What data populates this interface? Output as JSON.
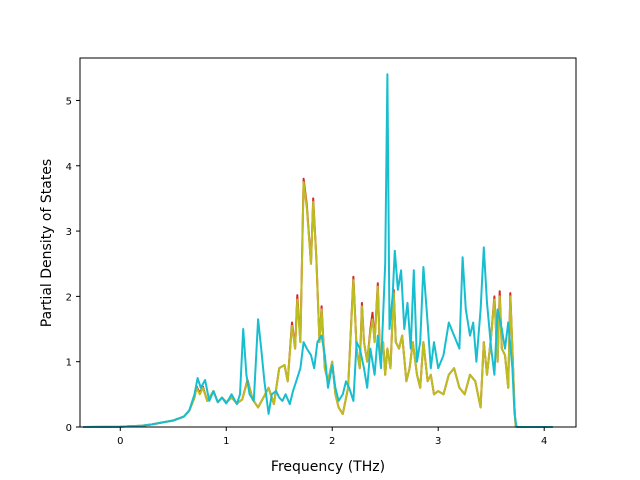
{
  "chart_data": {
    "type": "line",
    "title": "",
    "xlabel": "Frequency (THz)",
    "ylabel": "Partial Density of States",
    "xlim": [
      -0.38,
      4.3
    ],
    "ylim": [
      0,
      5.65
    ],
    "xticks": [
      0,
      1,
      2,
      3,
      4
    ],
    "yticks": [
      0,
      1,
      2,
      3,
      4,
      5
    ],
    "legend": "none",
    "grid": false,
    "series": [
      {
        "color": "#d62728",
        "points": [
          [
            -0.35,
            0
          ],
          [
            0.0,
            0.005
          ],
          [
            0.2,
            0.02
          ],
          [
            0.3,
            0.04
          ],
          [
            0.4,
            0.07
          ],
          [
            0.5,
            0.1
          ],
          [
            0.6,
            0.16
          ],
          [
            0.65,
            0.25
          ],
          [
            0.7,
            0.45
          ],
          [
            0.72,
            0.62
          ],
          [
            0.75,
            0.52
          ],
          [
            0.78,
            0.62
          ],
          [
            0.82,
            0.4
          ],
          [
            0.88,
            0.55
          ],
          [
            0.92,
            0.38
          ],
          [
            0.96,
            0.45
          ],
          [
            1.0,
            0.38
          ],
          [
            1.05,
            0.45
          ],
          [
            1.1,
            0.36
          ],
          [
            1.15,
            0.42
          ],
          [
            1.2,
            0.72
          ],
          [
            1.25,
            0.42
          ],
          [
            1.3,
            0.3
          ],
          [
            1.35,
            0.45
          ],
          [
            1.4,
            0.6
          ],
          [
            1.45,
            0.35
          ],
          [
            1.5,
            0.9
          ],
          [
            1.55,
            0.95
          ],
          [
            1.58,
            0.7
          ],
          [
            1.62,
            1.6
          ],
          [
            1.65,
            1.2
          ],
          [
            1.67,
            2.02
          ],
          [
            1.7,
            1.3
          ],
          [
            1.73,
            3.8
          ],
          [
            1.76,
            3.4
          ],
          [
            1.8,
            2.5
          ],
          [
            1.82,
            3.5
          ],
          [
            1.85,
            2.6
          ],
          [
            1.88,
            1.3
          ],
          [
            1.9,
            1.85
          ],
          [
            1.93,
            0.9
          ],
          [
            1.96,
            0.7
          ],
          [
            2.0,
            1.0
          ],
          [
            2.03,
            0.5
          ],
          [
            2.06,
            0.3
          ],
          [
            2.1,
            0.2
          ],
          [
            2.15,
            0.6
          ],
          [
            2.2,
            2.3
          ],
          [
            2.23,
            1.2
          ],
          [
            2.26,
            0.9
          ],
          [
            2.28,
            1.9
          ],
          [
            2.3,
            1.3
          ],
          [
            2.33,
            1.0
          ],
          [
            2.36,
            1.5
          ],
          [
            2.38,
            1.75
          ],
          [
            2.4,
            1.3
          ],
          [
            2.43,
            2.2
          ],
          [
            2.45,
            1.1
          ],
          [
            2.48,
            1.3
          ],
          [
            2.5,
            0.8
          ],
          [
            2.52,
            1.2
          ],
          [
            2.55,
            0.9
          ],
          [
            2.58,
            2.1
          ],
          [
            2.6,
            1.3
          ],
          [
            2.63,
            1.2
          ],
          [
            2.66,
            1.4
          ],
          [
            2.7,
            0.7
          ],
          [
            2.73,
            0.9
          ],
          [
            2.76,
            1.3
          ],
          [
            2.8,
            0.8
          ],
          [
            2.83,
            0.6
          ],
          [
            2.86,
            1.3
          ],
          [
            2.9,
            0.7
          ],
          [
            2.93,
            0.8
          ],
          [
            2.96,
            0.5
          ],
          [
            3.0,
            0.55
          ],
          [
            3.05,
            0.5
          ],
          [
            3.1,
            0.8
          ],
          [
            3.15,
            0.9
          ],
          [
            3.2,
            0.6
          ],
          [
            3.25,
            0.5
          ],
          [
            3.3,
            0.8
          ],
          [
            3.35,
            0.7
          ],
          [
            3.4,
            0.3
          ],
          [
            3.43,
            1.3
          ],
          [
            3.46,
            0.8
          ],
          [
            3.5,
            1.4
          ],
          [
            3.53,
            2.0
          ],
          [
            3.56,
            1.0
          ],
          [
            3.58,
            2.08
          ],
          [
            3.6,
            1.2
          ],
          [
            3.63,
            1.1
          ],
          [
            3.66,
            0.6
          ],
          [
            3.68,
            2.05
          ],
          [
            3.7,
            1.2
          ],
          [
            3.72,
            0.3
          ],
          [
            3.73,
            0.02
          ],
          [
            3.75,
            0
          ],
          [
            4.08,
            0
          ]
        ]
      },
      {
        "color": "#bcbd22",
        "points": [
          [
            -0.35,
            0
          ],
          [
            0.0,
            0.005
          ],
          [
            0.2,
            0.02
          ],
          [
            0.3,
            0.04
          ],
          [
            0.4,
            0.07
          ],
          [
            0.5,
            0.1
          ],
          [
            0.6,
            0.16
          ],
          [
            0.65,
            0.25
          ],
          [
            0.7,
            0.45
          ],
          [
            0.72,
            0.6
          ],
          [
            0.75,
            0.5
          ],
          [
            0.78,
            0.6
          ],
          [
            0.82,
            0.4
          ],
          [
            0.88,
            0.55
          ],
          [
            0.92,
            0.38
          ],
          [
            0.96,
            0.45
          ],
          [
            1.0,
            0.38
          ],
          [
            1.05,
            0.45
          ],
          [
            1.1,
            0.36
          ],
          [
            1.15,
            0.42
          ],
          [
            1.2,
            0.7
          ],
          [
            1.25,
            0.42
          ],
          [
            1.3,
            0.3
          ],
          [
            1.35,
            0.45
          ],
          [
            1.4,
            0.6
          ],
          [
            1.45,
            0.35
          ],
          [
            1.5,
            0.9
          ],
          [
            1.55,
            0.95
          ],
          [
            1.58,
            0.7
          ],
          [
            1.62,
            1.55
          ],
          [
            1.65,
            1.2
          ],
          [
            1.67,
            1.95
          ],
          [
            1.7,
            1.3
          ],
          [
            1.73,
            3.75
          ],
          [
            1.76,
            3.35
          ],
          [
            1.8,
            2.5
          ],
          [
            1.82,
            3.45
          ],
          [
            1.85,
            2.6
          ],
          [
            1.88,
            1.3
          ],
          [
            1.9,
            1.8
          ],
          [
            1.93,
            0.9
          ],
          [
            1.96,
            0.7
          ],
          [
            2.0,
            1.0
          ],
          [
            2.03,
            0.5
          ],
          [
            2.06,
            0.3
          ],
          [
            2.1,
            0.2
          ],
          [
            2.15,
            0.6
          ],
          [
            2.2,
            2.25
          ],
          [
            2.23,
            1.2
          ],
          [
            2.26,
            0.9
          ],
          [
            2.28,
            1.85
          ],
          [
            2.3,
            1.3
          ],
          [
            2.33,
            1.0
          ],
          [
            2.36,
            1.45
          ],
          [
            2.38,
            1.65
          ],
          [
            2.4,
            1.3
          ],
          [
            2.43,
            2.15
          ],
          [
            2.45,
            1.1
          ],
          [
            2.48,
            1.3
          ],
          [
            2.5,
            0.8
          ],
          [
            2.52,
            1.2
          ],
          [
            2.55,
            0.9
          ],
          [
            2.58,
            2.05
          ],
          [
            2.6,
            1.3
          ],
          [
            2.63,
            1.2
          ],
          [
            2.66,
            1.4
          ],
          [
            2.7,
            0.7
          ],
          [
            2.73,
            0.9
          ],
          [
            2.76,
            1.3
          ],
          [
            2.8,
            0.8
          ],
          [
            2.83,
            0.6
          ],
          [
            2.86,
            1.3
          ],
          [
            2.9,
            0.7
          ],
          [
            2.93,
            0.8
          ],
          [
            2.96,
            0.5
          ],
          [
            3.0,
            0.55
          ],
          [
            3.05,
            0.5
          ],
          [
            3.1,
            0.8
          ],
          [
            3.15,
            0.9
          ],
          [
            3.2,
            0.6
          ],
          [
            3.25,
            0.5
          ],
          [
            3.3,
            0.8
          ],
          [
            3.35,
            0.7
          ],
          [
            3.4,
            0.3
          ],
          [
            3.43,
            1.3
          ],
          [
            3.46,
            0.8
          ],
          [
            3.5,
            1.4
          ],
          [
            3.53,
            1.95
          ],
          [
            3.56,
            1.0
          ],
          [
            3.58,
            2.0
          ],
          [
            3.6,
            1.2
          ],
          [
            3.63,
            1.1
          ],
          [
            3.66,
            0.6
          ],
          [
            3.68,
            2.0
          ],
          [
            3.7,
            1.2
          ],
          [
            3.72,
            0.3
          ],
          [
            3.73,
            0.02
          ],
          [
            3.75,
            0
          ],
          [
            4.08,
            0
          ]
        ]
      },
      {
        "color": "#17becf",
        "points": [
          [
            -0.35,
            0
          ],
          [
            0.0,
            0.005
          ],
          [
            0.2,
            0.02
          ],
          [
            0.3,
            0.04
          ],
          [
            0.4,
            0.07
          ],
          [
            0.5,
            0.1
          ],
          [
            0.6,
            0.16
          ],
          [
            0.65,
            0.25
          ],
          [
            0.7,
            0.5
          ],
          [
            0.73,
            0.75
          ],
          [
            0.76,
            0.6
          ],
          [
            0.8,
            0.72
          ],
          [
            0.84,
            0.4
          ],
          [
            0.88,
            0.55
          ],
          [
            0.92,
            0.38
          ],
          [
            0.96,
            0.45
          ],
          [
            1.0,
            0.36
          ],
          [
            1.05,
            0.5
          ],
          [
            1.1,
            0.35
          ],
          [
            1.13,
            0.5
          ],
          [
            1.16,
            1.5
          ],
          [
            1.19,
            0.8
          ],
          [
            1.22,
            0.5
          ],
          [
            1.26,
            0.4
          ],
          [
            1.3,
            1.65
          ],
          [
            1.33,
            1.2
          ],
          [
            1.36,
            0.7
          ],
          [
            1.4,
            0.2
          ],
          [
            1.43,
            0.5
          ],
          [
            1.47,
            0.55
          ],
          [
            1.5,
            0.45
          ],
          [
            1.53,
            0.4
          ],
          [
            1.56,
            0.5
          ],
          [
            1.6,
            0.35
          ],
          [
            1.63,
            0.55
          ],
          [
            1.66,
            0.7
          ],
          [
            1.7,
            0.9
          ],
          [
            1.73,
            1.3
          ],
          [
            1.76,
            1.2
          ],
          [
            1.8,
            1.1
          ],
          [
            1.83,
            0.9
          ],
          [
            1.86,
            1.3
          ],
          [
            1.9,
            1.4
          ],
          [
            1.93,
            1.1
          ],
          [
            1.96,
            0.6
          ],
          [
            2.0,
            0.95
          ],
          [
            2.03,
            0.6
          ],
          [
            2.06,
            0.4
          ],
          [
            2.1,
            0.5
          ],
          [
            2.13,
            0.7
          ],
          [
            2.16,
            0.6
          ],
          [
            2.2,
            0.4
          ],
          [
            2.23,
            1.3
          ],
          [
            2.26,
            1.2
          ],
          [
            2.3,
            0.9
          ],
          [
            2.33,
            0.6
          ],
          [
            2.36,
            1.2
          ],
          [
            2.4,
            0.8
          ],
          [
            2.43,
            1.4
          ],
          [
            2.46,
            0.9
          ],
          [
            2.5,
            2.5
          ],
          [
            2.52,
            5.4
          ],
          [
            2.54,
            1.5
          ],
          [
            2.57,
            2.0
          ],
          [
            2.59,
            2.7
          ],
          [
            2.62,
            2.1
          ],
          [
            2.65,
            2.4
          ],
          [
            2.68,
            1.5
          ],
          [
            2.71,
            1.9
          ],
          [
            2.74,
            1.2
          ],
          [
            2.77,
            2.4
          ],
          [
            2.8,
            1.0
          ],
          [
            2.83,
            1.3
          ],
          [
            2.86,
            2.45
          ],
          [
            2.9,
            1.6
          ],
          [
            2.93,
            0.9
          ],
          [
            2.96,
            1.3
          ],
          [
            3.0,
            0.9
          ],
          [
            3.05,
            1.1
          ],
          [
            3.1,
            1.6
          ],
          [
            3.15,
            1.4
          ],
          [
            3.2,
            1.2
          ],
          [
            3.23,
            2.6
          ],
          [
            3.26,
            1.8
          ],
          [
            3.3,
            1.4
          ],
          [
            3.33,
            1.6
          ],
          [
            3.36,
            1.0
          ],
          [
            3.4,
            1.8
          ],
          [
            3.43,
            2.75
          ],
          [
            3.46,
            1.9
          ],
          [
            3.5,
            1.2
          ],
          [
            3.53,
            0.8
          ],
          [
            3.56,
            1.8
          ],
          [
            3.6,
            1.5
          ],
          [
            3.63,
            1.2
          ],
          [
            3.66,
            1.6
          ],
          [
            3.7,
            0.9
          ],
          [
            3.72,
            0.2
          ],
          [
            3.74,
            0
          ],
          [
            4.08,
            0
          ]
        ]
      }
    ]
  }
}
